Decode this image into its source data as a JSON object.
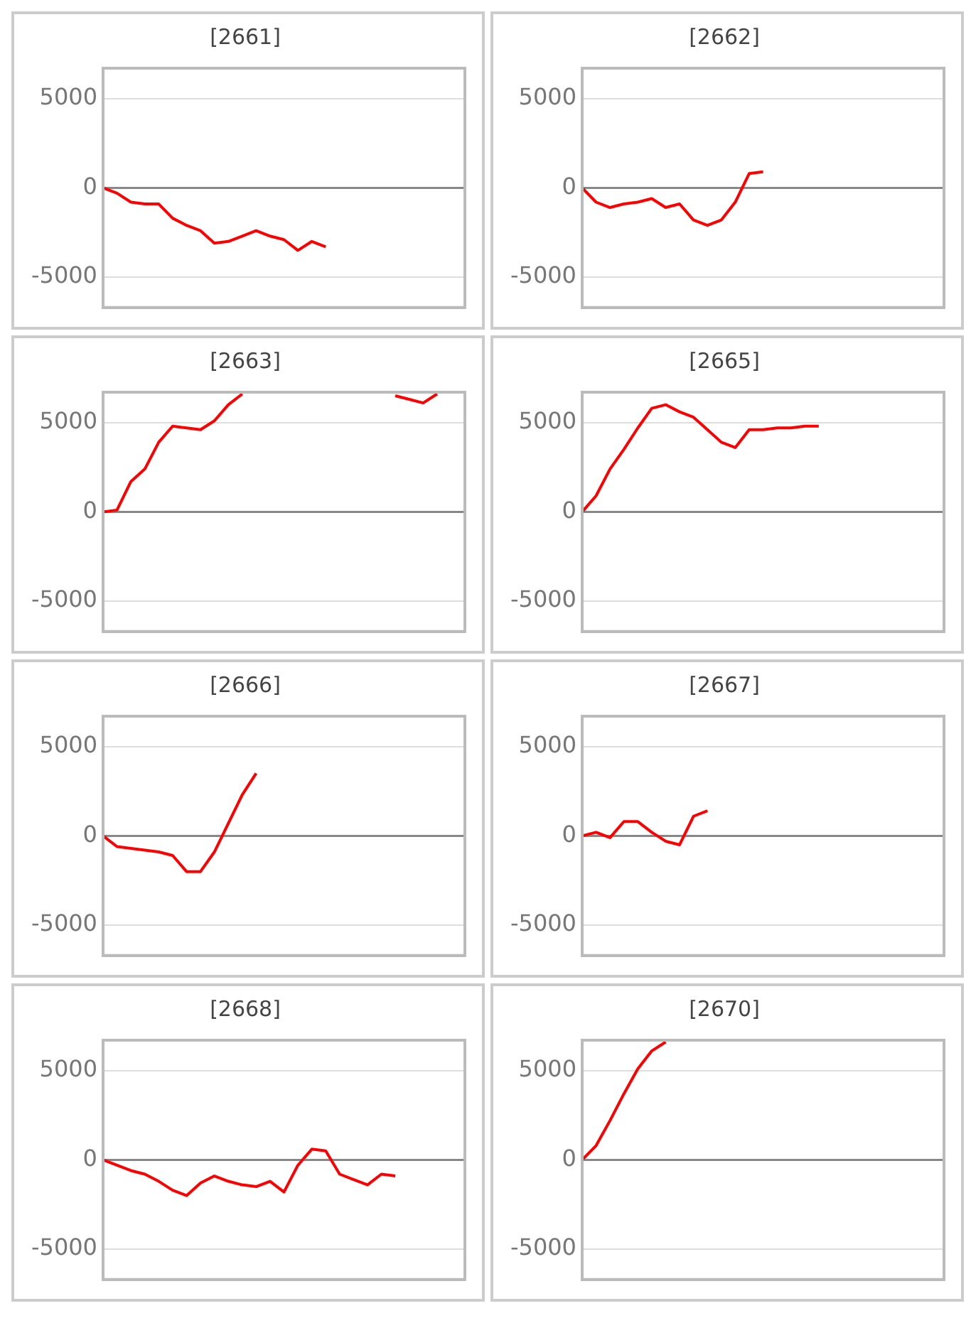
{
  "chart_data": [
    {
      "type": "line",
      "title": "[2661]",
      "categories": [
        null,
        null,
        null,
        null,
        null,
        null,
        null,
        null,
        null,
        null,
        null,
        null,
        null,
        null,
        null,
        null,
        null,
        null,
        null,
        null,
        null,
        null,
        null,
        null,
        null,
        null,
        null
      ],
      "series": [
        {
          "color": "#ff0000",
          "values": [
            0,
            -300,
            -800,
            -900,
            -900,
            -1700,
            -2100,
            -2400,
            -3100,
            -3000,
            -2700,
            -2400,
            -2700,
            -2900,
            -3500,
            -3000,
            -3300,
            null,
            null,
            null,
            null,
            null,
            null,
            null,
            null,
            null,
            null
          ]
        }
      ],
      "ylim": [
        -6700,
        6700
      ],
      "yticks": [
        -5000,
        0,
        5000
      ],
      "grid": "y",
      "tick_labels": "y",
      "ref_lines": [
        {
          "axis": "y",
          "value": 0,
          "color": "#888888"
        }
      ],
      "marker": "none"
    },
    {
      "type": "line",
      "title": "[2662]",
      "categories": [
        null,
        null,
        null,
        null,
        null,
        null,
        null,
        null,
        null,
        null,
        null,
        null,
        null,
        null,
        null,
        null,
        null,
        null,
        null,
        null,
        null,
        null,
        null,
        null,
        null,
        null,
        null
      ],
      "series": [
        {
          "color": "#ff0000",
          "values": [
            0,
            -800,
            -1100,
            -900,
            -800,
            -600,
            -1100,
            -900,
            -1800,
            -2100,
            -1800,
            -800,
            800,
            900,
            null,
            null,
            null,
            null,
            null,
            null,
            null,
            null,
            null,
            null,
            null,
            null,
            null
          ]
        }
      ],
      "ylim": [
        -6700,
        6700
      ],
      "yticks": [
        -5000,
        0,
        5000
      ],
      "grid": "y",
      "tick_labels": "y",
      "ref_lines": [
        {
          "axis": "y",
          "value": 0,
          "color": "#888888"
        }
      ],
      "marker": "none"
    },
    {
      "type": "line",
      "title": "[2663]",
      "categories": [
        null,
        null,
        null,
        null,
        null,
        null,
        null,
        null,
        null,
        null,
        null,
        null,
        null,
        null,
        null,
        null,
        null,
        null,
        null,
        null,
        null,
        null,
        null,
        null,
        null,
        null,
        null
      ],
      "series": [
        {
          "color": "#ff0000",
          "values": [
            0,
            100,
            1700,
            2400,
            3900,
            4800,
            4700,
            4600,
            5100,
            6000,
            6600,
            null,
            null,
            null,
            null,
            null,
            null,
            null,
            null,
            null,
            null,
            6500,
            6300,
            6100,
            6600,
            null,
            null
          ]
        }
      ],
      "ylim": [
        -6700,
        6700
      ],
      "yticks": [
        -5000,
        0,
        5000
      ],
      "grid": "y",
      "tick_labels": "y",
      "ref_lines": [
        {
          "axis": "y",
          "value": 0,
          "color": "#888888"
        }
      ],
      "marker": "none"
    },
    {
      "type": "line",
      "title": "[2665]",
      "categories": [
        null,
        null,
        null,
        null,
        null,
        null,
        null,
        null,
        null,
        null,
        null,
        null,
        null,
        null,
        null,
        null,
        null,
        null,
        null,
        null,
        null,
        null,
        null,
        null,
        null,
        null,
        null
      ],
      "series": [
        {
          "color": "#ff0000",
          "values": [
            0,
            900,
            2400,
            3500,
            4700,
            5800,
            6000,
            5600,
            5300,
            4600,
            3900,
            3600,
            4600,
            4600,
            4700,
            4700,
            4800,
            4800,
            null,
            null,
            null,
            null,
            null,
            null,
            null,
            null,
            null
          ]
        }
      ],
      "ylim": [
        -6700,
        6700
      ],
      "yticks": [
        -5000,
        0,
        5000
      ],
      "grid": "y",
      "tick_labels": "y",
      "ref_lines": [
        {
          "axis": "y",
          "value": 0,
          "color": "#888888"
        }
      ],
      "marker": "none"
    },
    {
      "type": "line",
      "title": "[2666]",
      "categories": [
        null,
        null,
        null,
        null,
        null,
        null,
        null,
        null,
        null,
        null,
        null,
        null,
        null,
        null,
        null,
        null,
        null,
        null,
        null,
        null,
        null,
        null,
        null,
        null,
        null,
        null,
        null
      ],
      "series": [
        {
          "color": "#ff0000",
          "values": [
            0,
            -600,
            -700,
            -800,
            -900,
            -1100,
            -2000,
            -2000,
            -900,
            700,
            2300,
            3500,
            null,
            null,
            null,
            null,
            null,
            null,
            null,
            null,
            null,
            null,
            null,
            null,
            null,
            null,
            null
          ]
        }
      ],
      "ylim": [
        -6700,
        6700
      ],
      "yticks": [
        -5000,
        0,
        5000
      ],
      "grid": "y",
      "tick_labels": "y",
      "ref_lines": [
        {
          "axis": "y",
          "value": 0,
          "color": "#888888"
        }
      ],
      "marker": "none"
    },
    {
      "type": "line",
      "title": "[2667]",
      "categories": [
        null,
        null,
        null,
        null,
        null,
        null,
        null,
        null,
        null,
        null,
        null,
        null,
        null,
        null,
        null,
        null,
        null,
        null,
        null,
        null,
        null,
        null,
        null,
        null,
        null,
        null,
        null
      ],
      "series": [
        {
          "color": "#ff0000",
          "values": [
            0,
            200,
            -100,
            800,
            800,
            200,
            -300,
            -500,
            1100,
            1400,
            null,
            null,
            null,
            null,
            null,
            null,
            null,
            null,
            null,
            null,
            null,
            null,
            null,
            null,
            null,
            null,
            null
          ]
        }
      ],
      "ylim": [
        -6700,
        6700
      ],
      "yticks": [
        -5000,
        0,
        5000
      ],
      "grid": "y",
      "tick_labels": "y",
      "ref_lines": [
        {
          "axis": "y",
          "value": 0,
          "color": "#888888"
        }
      ],
      "marker": "none"
    },
    {
      "type": "line",
      "title": "[2668]",
      "categories": [
        null,
        null,
        null,
        null,
        null,
        null,
        null,
        null,
        null,
        null,
        null,
        null,
        null,
        null,
        null,
        null,
        null,
        null,
        null,
        null,
        null,
        null,
        null,
        null,
        null,
        null,
        null
      ],
      "series": [
        {
          "color": "#ff0000",
          "values": [
            0,
            -300,
            -600,
            -800,
            -1200,
            -1700,
            -2000,
            -1300,
            -900,
            -1200,
            -1400,
            -1500,
            -1200,
            -1800,
            -300,
            600,
            500,
            -800,
            -1100,
            -1400,
            -800,
            -900,
            null,
            null,
            null,
            null,
            null
          ]
        }
      ],
      "ylim": [
        -6700,
        6700
      ],
      "yticks": [
        -5000,
        0,
        5000
      ],
      "grid": "y",
      "tick_labels": "y",
      "ref_lines": [
        {
          "axis": "y",
          "value": 0,
          "color": "#888888"
        }
      ],
      "marker": "none"
    },
    {
      "type": "line",
      "title": "[2670]",
      "categories": [
        null,
        null,
        null,
        null,
        null,
        null,
        null,
        null,
        null,
        null,
        null,
        null,
        null,
        null,
        null,
        null,
        null,
        null,
        null,
        null,
        null,
        null,
        null,
        null,
        null,
        null,
        null
      ],
      "series": [
        {
          "color": "#ff0000",
          "values": [
            0,
            800,
            2200,
            3700,
            5100,
            6100,
            6600,
            null,
            null,
            null,
            null,
            null,
            null,
            null,
            null,
            null,
            null,
            null,
            null,
            null,
            null,
            null,
            null,
            null,
            null,
            null,
            null
          ]
        }
      ],
      "ylim": [
        -6700,
        6700
      ],
      "yticks": [
        -5000,
        0,
        5000
      ],
      "grid": "y",
      "tick_labels": "y",
      "ref_lines": [
        {
          "axis": "y",
          "value": 0,
          "color": "#888888"
        }
      ],
      "marker": "none"
    }
  ]
}
